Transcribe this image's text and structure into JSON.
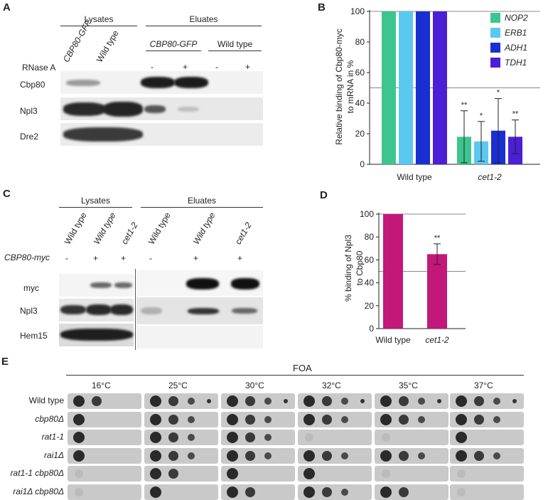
{
  "panels": {
    "A": {
      "letter": "A",
      "groups": [
        "Lysates",
        "Eluates"
      ],
      "lanes": [
        "CBP80-GFP",
        "Wild type"
      ],
      "eluate_subgroups": [
        "CBP80-GFP",
        "Wild type"
      ],
      "rnase_label": "RNase A",
      "rnase_signs": [
        "-",
        "+",
        "-",
        "+"
      ],
      "rows": [
        "Cbp80",
        "Npl3",
        "Dre2"
      ]
    },
    "B": {
      "letter": "B",
      "ylabel_line1": "Relative binding of Cbp80-myc",
      "ylabel_line2": "to mRNA in %",
      "legend": [
        "NOP2",
        "ERB1",
        "ADH1",
        "TDH1"
      ]
    },
    "C": {
      "letter": "C",
      "groups": [
        "Lysates",
        "Eluates"
      ],
      "lanes": [
        "Wild type",
        "Wild type",
        "cet1-2",
        "Wild type",
        "Wild type",
        "cet1-2"
      ],
      "construct_label": "CBP80-myc",
      "signs": [
        "-",
        "+",
        "+",
        "-",
        "+",
        "+"
      ],
      "rows": [
        "myc",
        "Npl3",
        "Hem15"
      ]
    },
    "D": {
      "letter": "D",
      "ylabel_line1": "% binding of Npl3",
      "ylabel_line2": "to Cbp80"
    },
    "E": {
      "letter": "E",
      "title": "FOA",
      "temps": [
        "16°C",
        "25°C",
        "30°C",
        "32°C",
        "35°C",
        "37°C"
      ],
      "strains": [
        "Wild type",
        "cbp80Δ",
        "rat1-1",
        "rai1Δ",
        "rat1-1 cbp80Δ",
        "rai1Δ cbp80Δ"
      ]
    }
  },
  "chart_data": [
    {
      "type": "bar",
      "panel": "B",
      "categories": [
        "Wild type",
        "cet1-2"
      ],
      "series": [
        {
          "name": "NOP2",
          "values": [
            100,
            18
          ],
          "errors": [
            0,
            17
          ]
        },
        {
          "name": "ERB1",
          "values": [
            100,
            15
          ],
          "errors": [
            0,
            13
          ]
        },
        {
          "name": "ADH1",
          "values": [
            100,
            22
          ],
          "errors": [
            0,
            21
          ]
        },
        {
          "name": "TDH1",
          "values": [
            100,
            18
          ],
          "errors": [
            0,
            11
          ]
        }
      ],
      "significance": [
        "**",
        "*",
        "*",
        "**"
      ],
      "colors": [
        "#3ec58f",
        "#5bc8f0",
        "#1a2fd1",
        "#4a1fd6"
      ],
      "reference_lines": [
        100,
        50
      ],
      "ylim": [
        0,
        100
      ],
      "yticks": [
        0,
        20,
        40,
        60,
        80,
        100
      ]
    },
    {
      "type": "bar",
      "panel": "D",
      "categories": [
        "Wild type",
        "cet1-2"
      ],
      "values": [
        100,
        65
      ],
      "errors": [
        0,
        9
      ],
      "significance": [
        "",
        "**"
      ],
      "color": "#c2187a",
      "reference_lines": [
        100,
        50
      ],
      "ylim": [
        0,
        100
      ],
      "yticks": [
        0,
        20,
        40,
        60,
        80,
        100
      ]
    }
  ]
}
